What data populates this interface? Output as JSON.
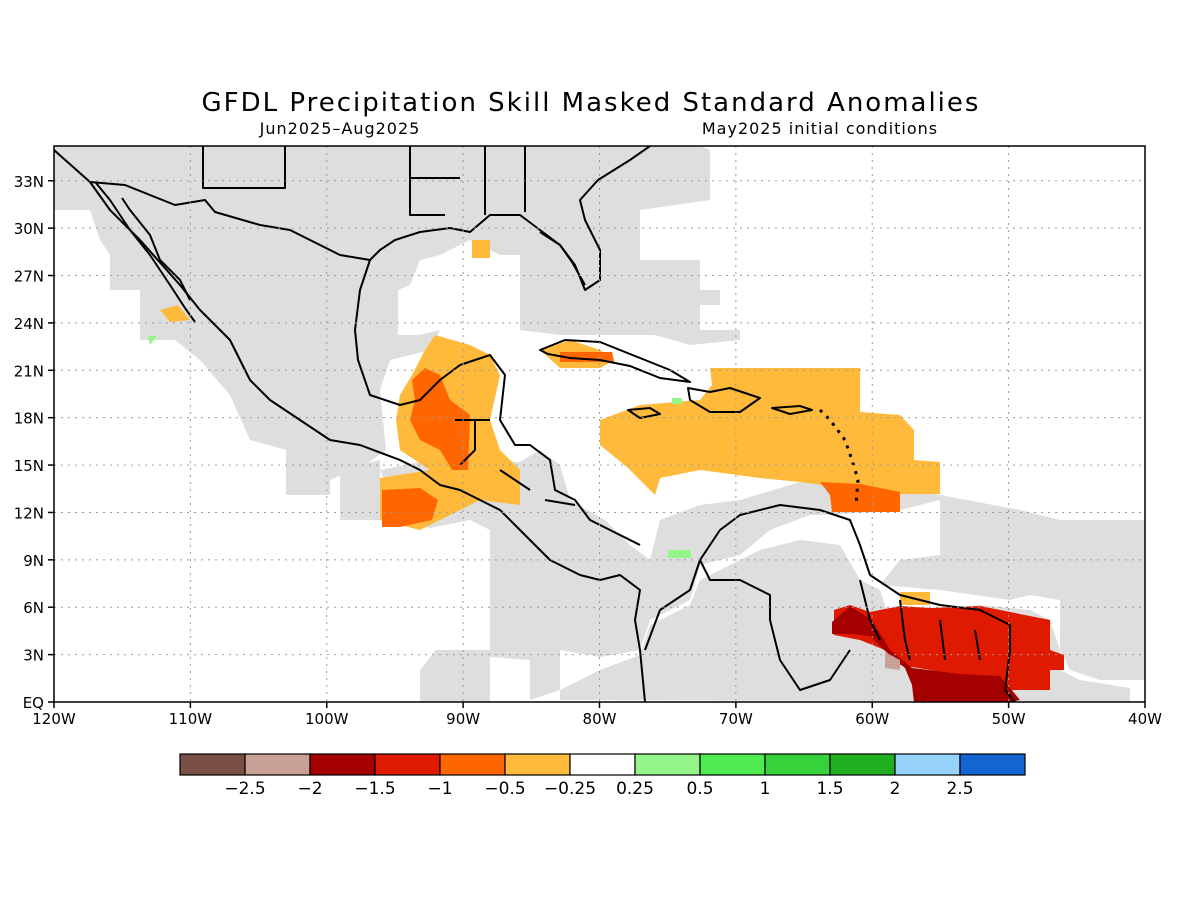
{
  "title": "GFDL Precipitation Skill Masked Standard Anomalies",
  "subtitle_left": "Jun2025–Aug2025",
  "subtitle_right": "May2025 initial conditions",
  "map": {
    "lon_range": [
      -120,
      -40
    ],
    "lat_range": [
      0,
      35
    ],
    "lon_ticks": [
      {
        "value": -120,
        "label": "120W"
      },
      {
        "value": -110,
        "label": "110W"
      },
      {
        "value": -100,
        "label": "100W"
      },
      {
        "value": -90,
        "label": "90W"
      },
      {
        "value": -80,
        "label": "80W"
      },
      {
        "value": -70,
        "label": "70W"
      },
      {
        "value": -60,
        "label": "60W"
      },
      {
        "value": -50,
        "label": "50W"
      },
      {
        "value": -40,
        "label": "40W"
      }
    ],
    "lat_ticks": [
      {
        "value": 0,
        "label": "EQ"
      },
      {
        "value": 3,
        "label": "3N"
      },
      {
        "value": 6,
        "label": "6N"
      },
      {
        "value": 9,
        "label": "9N"
      },
      {
        "value": 12,
        "label": "12N"
      },
      {
        "value": 15,
        "label": "15N"
      },
      {
        "value": 18,
        "label": "18N"
      },
      {
        "value": 21,
        "label": "21N"
      },
      {
        "value": 24,
        "label": "24N"
      },
      {
        "value": 27,
        "label": "27N"
      },
      {
        "value": 30,
        "label": "30N"
      },
      {
        "value": 33,
        "label": "33N"
      }
    ],
    "grid": true
  },
  "colorbar": {
    "colors": [
      "#7a4f45",
      "#c8a095",
      "#a50000",
      "#e01a00",
      "#ff6600",
      "#ffb93b",
      "#ffffff",
      "#96f58a",
      "#50eb50",
      "#37d13c",
      "#1faf1f",
      "#96d2fa",
      "#1464d2"
    ],
    "labels": [
      "−2.5",
      "−2",
      "−1.5",
      "−1",
      "−0.5",
      "−0.25",
      "0.25",
      "0.5",
      "1",
      "1.5",
      "2",
      "2.5"
    ]
  },
  "colors": {
    "masked": "#dedede",
    "coast": "#000000",
    "grid": "#9a9a9a"
  }
}
